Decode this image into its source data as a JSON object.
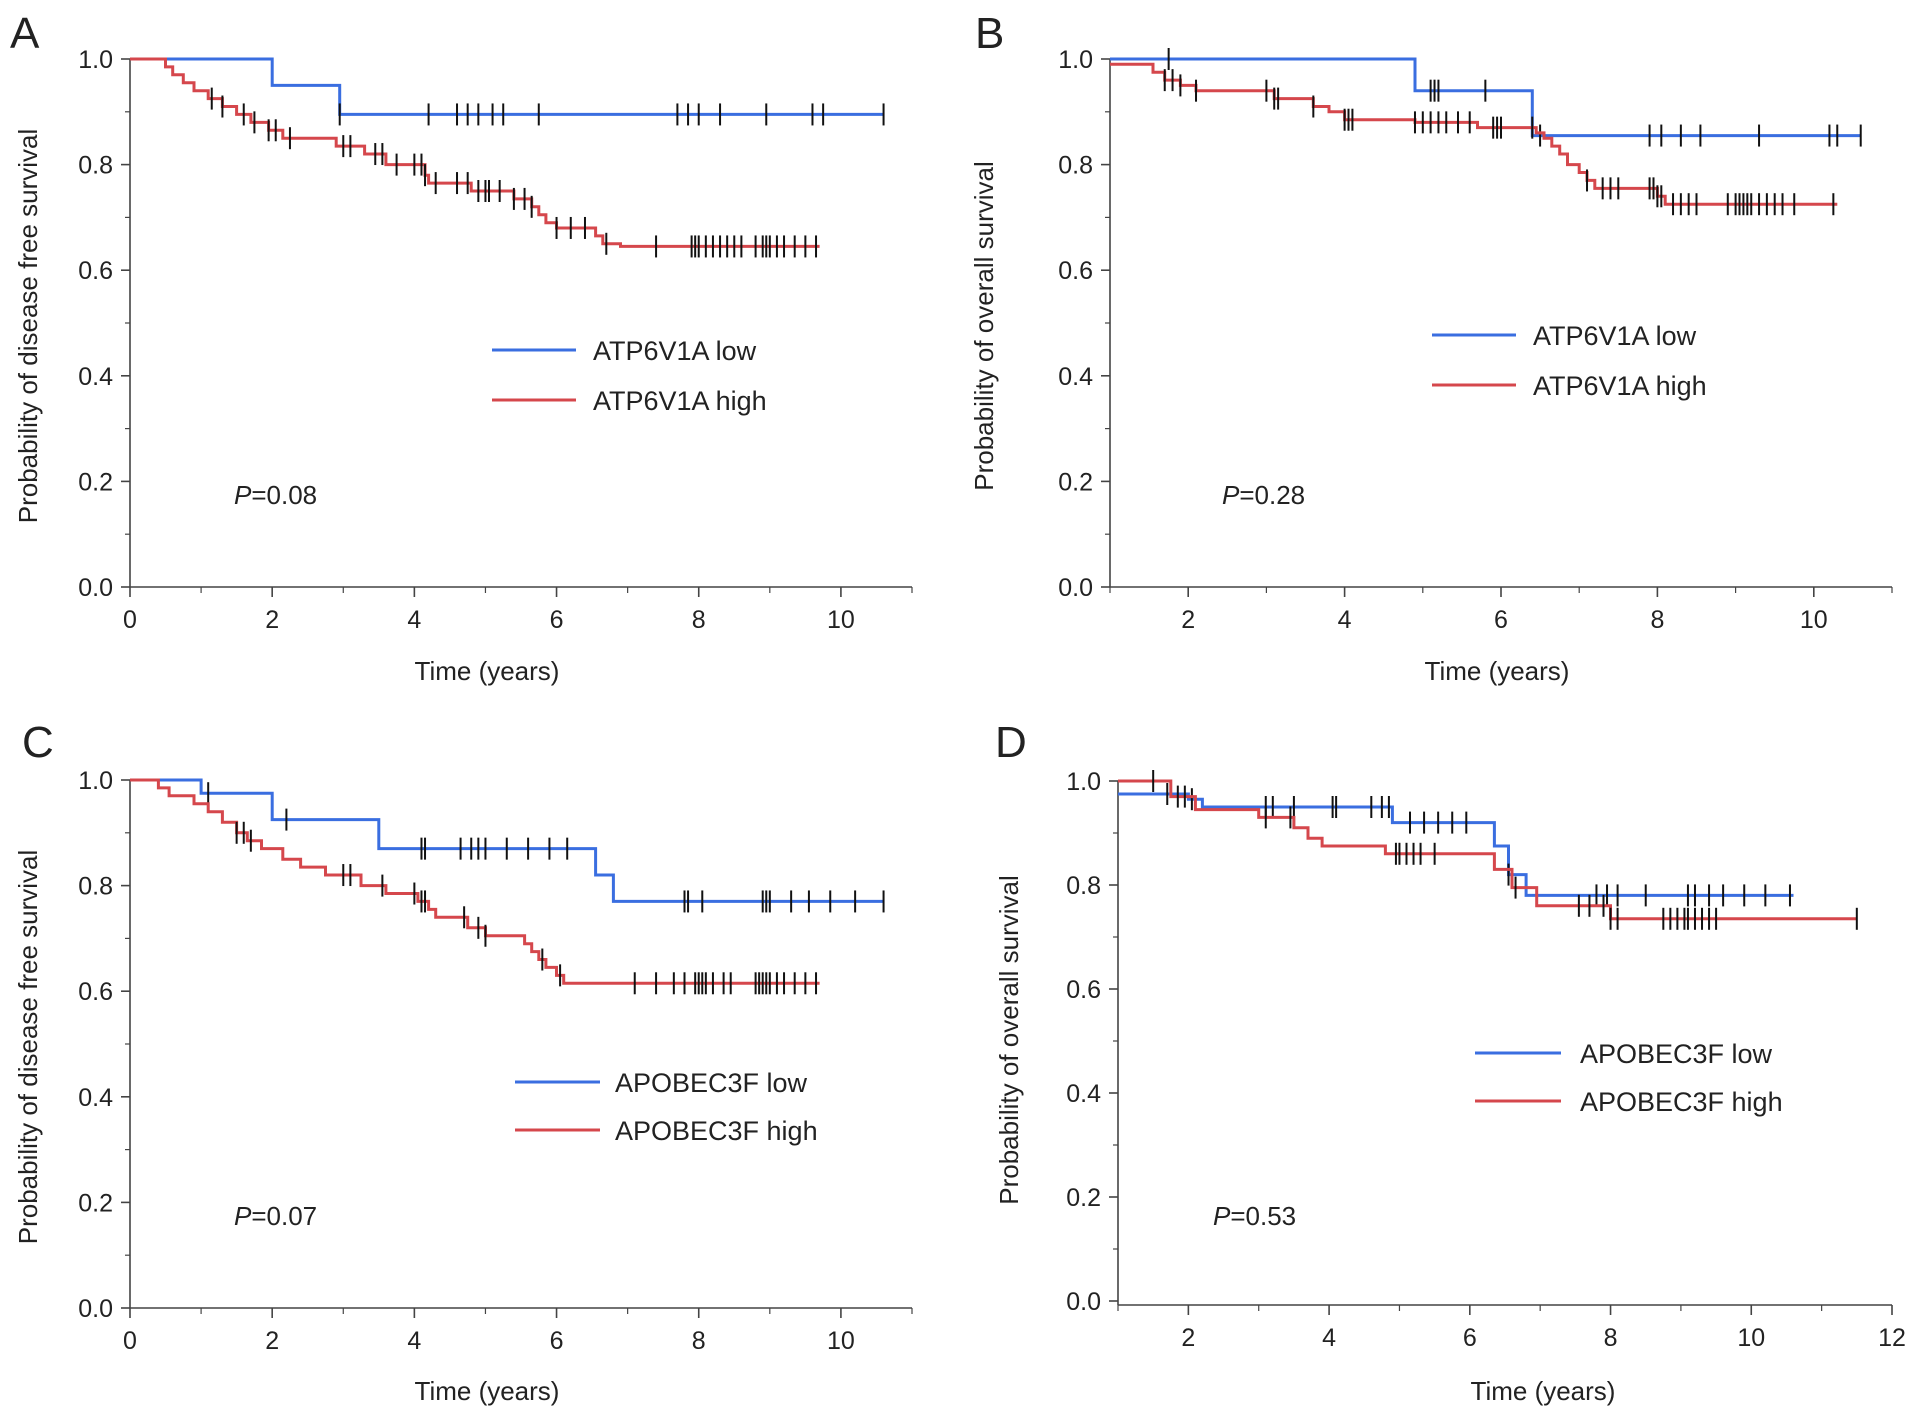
{
  "figure": {
    "type": "kaplan-meier survival curves",
    "panels": 4
  },
  "colors": {
    "low": "#3a6ee0",
    "high": "#d5474c",
    "axis": "#444444",
    "censor": "#111111",
    "text": "#222222"
  },
  "chart_data": [
    {
      "panel": "A",
      "type": "line",
      "subtype": "kaplan-meier",
      "xlabel": "Time (years)",
      "ylabel": "Probability of disease free survival",
      "xlim": [
        0,
        11
      ],
      "ylim": [
        0,
        1
      ],
      "xticks": [
        0,
        2,
        4,
        6,
        8,
        10
      ],
      "xtick_labels": [
        "0",
        "2",
        "4",
        "6",
        "8",
        "10"
      ],
      "yticks": [
        0,
        0.2,
        0.4,
        0.6,
        0.8,
        1.0
      ],
      "ytick_labels": [
        "0.0",
        "0.2",
        "0.4",
        "0.6",
        "0.8",
        "1.0"
      ],
      "p_prefix": "P",
      "p_suffix": "=0.08",
      "series": [
        {
          "name": "ATP6V1A low",
          "color": "#3a6ee0",
          "end_x": 10.6,
          "steps": [
            [
              0,
              1.0
            ],
            [
              2.0,
              0.95
            ],
            [
              2.95,
              0.895
            ]
          ],
          "censor": [
            2.95,
            4.2,
            4.6,
            4.75,
            4.9,
            5.1,
            5.25,
            5.75,
            7.7,
            7.85,
            8.0,
            8.3,
            8.95,
            9.6,
            9.75,
            10.6
          ]
        },
        {
          "name": "ATP6V1A high",
          "color": "#d5474c",
          "end_x": 9.7,
          "steps": [
            [
              0,
              1.0
            ],
            [
              0.5,
              0.985
            ],
            [
              0.6,
              0.97
            ],
            [
              0.75,
              0.955
            ],
            [
              0.9,
              0.94
            ],
            [
              1.1,
              0.925
            ],
            [
              1.3,
              0.91
            ],
            [
              1.5,
              0.895
            ],
            [
              1.7,
              0.88
            ],
            [
              1.95,
              0.865
            ],
            [
              2.15,
              0.85
            ],
            [
              2.9,
              0.835
            ],
            [
              3.3,
              0.82
            ],
            [
              3.6,
              0.8
            ],
            [
              4.15,
              0.78
            ],
            [
              4.2,
              0.765
            ],
            [
              4.8,
              0.75
            ],
            [
              5.4,
              0.735
            ],
            [
              5.65,
              0.72
            ],
            [
              5.75,
              0.705
            ],
            [
              5.85,
              0.69
            ],
            [
              6.0,
              0.68
            ],
            [
              6.3,
              0.68
            ],
            [
              6.55,
              0.665
            ],
            [
              6.65,
              0.65
            ],
            [
              6.9,
              0.645
            ]
          ],
          "censor": [
            1.15,
            1.3,
            1.6,
            1.75,
            1.95,
            2.05,
            2.25,
            3.0,
            3.1,
            3.45,
            3.55,
            3.75,
            4.0,
            4.1,
            4.15,
            4.3,
            4.6,
            4.75,
            4.9,
            5.0,
            5.05,
            5.2,
            5.4,
            5.55,
            5.65,
            6.0,
            6.2,
            6.4,
            6.7,
            7.4,
            7.9,
            7.95,
            8.0,
            8.1,
            8.2,
            8.3,
            8.4,
            8.5,
            8.6,
            8.8,
            8.9,
            8.95,
            9.0,
            9.1,
            9.2,
            9.35,
            9.5,
            9.65
          ]
        }
      ]
    },
    {
      "panel": "B",
      "type": "line",
      "subtype": "kaplan-meier",
      "xlabel": "Time (years)",
      "ylabel": "Probability of overall survival",
      "xlim": [
        1,
        11
      ],
      "ylim": [
        0,
        1
      ],
      "xticks": [
        2,
        4,
        6,
        8,
        10
      ],
      "xtick_labels": [
        "2",
        "4",
        "6",
        "8",
        "10"
      ],
      "yticks": [
        0,
        0.2,
        0.4,
        0.6,
        0.8,
        1.0
      ],
      "ytick_labels": [
        "0.0",
        "0.2",
        "0.4",
        "0.6",
        "0.8",
        "1.0"
      ],
      "p_prefix": "P",
      "p_suffix": "=0.28",
      "series": [
        {
          "name": "ATP6V1A low",
          "color": "#3a6ee0",
          "end_x": 10.6,
          "steps": [
            [
              1,
              1.0
            ],
            [
              4.9,
              0.94
            ],
            [
              6.4,
              0.855
            ]
          ],
          "censor": [
            1.75,
            5.1,
            5.15,
            5.2,
            5.8,
            6.5,
            7.9,
            8.05,
            8.3,
            8.55,
            9.3,
            10.2,
            10.3,
            10.6
          ]
        },
        {
          "name": "ATP6V1A high",
          "color": "#d5474c",
          "end_x": 10.3,
          "steps": [
            [
              1,
              0.99
            ],
            [
              1.55,
              0.975
            ],
            [
              1.7,
              0.96
            ],
            [
              1.9,
              0.95
            ],
            [
              2.1,
              0.94
            ],
            [
              3.1,
              0.925
            ],
            [
              3.6,
              0.91
            ],
            [
              3.8,
              0.9
            ],
            [
              4.0,
              0.885
            ],
            [
              4.9,
              0.88
            ],
            [
              5.7,
              0.87
            ],
            [
              6.45,
              0.86
            ],
            [
              6.55,
              0.85
            ],
            [
              6.65,
              0.835
            ],
            [
              6.75,
              0.82
            ],
            [
              6.85,
              0.8
            ],
            [
              7.0,
              0.785
            ],
            [
              7.1,
              0.77
            ],
            [
              7.2,
              0.755
            ],
            [
              8.0,
              0.74
            ],
            [
              8.1,
              0.725
            ]
          ],
          "censor": [
            1.7,
            1.8,
            1.9,
            2.1,
            3.0,
            3.1,
            3.15,
            3.6,
            4.0,
            4.05,
            4.1,
            4.9,
            5.0,
            5.1,
            5.2,
            5.3,
            5.45,
            5.6,
            5.9,
            5.95,
            6.0,
            6.4,
            7.1,
            7.3,
            7.4,
            7.5,
            7.9,
            7.95,
            8.0,
            8.05,
            8.2,
            8.3,
            8.4,
            8.5,
            8.9,
            9.0,
            9.05,
            9.1,
            9.15,
            9.2,
            9.3,
            9.4,
            9.5,
            9.6,
            9.75,
            10.25
          ]
        }
      ]
    },
    {
      "panel": "C",
      "type": "line",
      "subtype": "kaplan-meier",
      "xlabel": "Time (years)",
      "ylabel": "Probability of disease free survival",
      "xlim": [
        0,
        11
      ],
      "ylim": [
        0,
        1
      ],
      "xticks": [
        0,
        2,
        4,
        6,
        8,
        10
      ],
      "xtick_labels": [
        "0",
        "2",
        "4",
        "6",
        "8",
        "10"
      ],
      "yticks": [
        0,
        0.2,
        0.4,
        0.6,
        0.8,
        1.0
      ],
      "ytick_labels": [
        "0.0",
        "0.2",
        "0.4",
        "0.6",
        "0.8",
        "1.0"
      ],
      "p_prefix": "P",
      "p_suffix": "=0.07",
      "series": [
        {
          "name": "APOBEC3F low",
          "color": "#3a6ee0",
          "end_x": 10.6,
          "steps": [
            [
              0,
              1.0
            ],
            [
              1.0,
              0.975
            ],
            [
              2.0,
              0.925
            ],
            [
              3.5,
              0.87
            ],
            [
              6.55,
              0.82
            ],
            [
              6.8,
              0.77
            ]
          ],
          "censor": [
            1.1,
            2.2,
            4.1,
            4.15,
            4.65,
            4.8,
            4.9,
            5.0,
            5.3,
            5.6,
            5.9,
            6.15,
            7.8,
            7.85,
            8.05,
            8.9,
            8.95,
            9.0,
            9.3,
            9.55,
            9.85,
            10.2,
            10.6
          ]
        },
        {
          "name": "APOBEC3F high",
          "color": "#d5474c",
          "end_x": 9.7,
          "steps": [
            [
              0,
              1.0
            ],
            [
              0.4,
              0.985
            ],
            [
              0.55,
              0.97
            ],
            [
              0.9,
              0.955
            ],
            [
              1.1,
              0.94
            ],
            [
              1.3,
              0.92
            ],
            [
              1.5,
              0.9
            ],
            [
              1.65,
              0.885
            ],
            [
              1.85,
              0.87
            ],
            [
              2.15,
              0.85
            ],
            [
              2.4,
              0.835
            ],
            [
              2.75,
              0.82
            ],
            [
              3.25,
              0.8
            ],
            [
              3.6,
              0.785
            ],
            [
              4.05,
              0.77
            ],
            [
              4.2,
              0.755
            ],
            [
              4.3,
              0.74
            ],
            [
              4.75,
              0.72
            ],
            [
              5.0,
              0.705
            ],
            [
              5.55,
              0.69
            ],
            [
              5.65,
              0.675
            ],
            [
              5.75,
              0.66
            ],
            [
              5.85,
              0.645
            ],
            [
              6.0,
              0.63
            ],
            [
              6.1,
              0.615
            ]
          ],
          "censor": [
            1.5,
            1.6,
            1.7,
            3.0,
            3.1,
            3.55,
            4.0,
            4.1,
            4.15,
            4.7,
            4.9,
            5.0,
            5.8,
            6.05,
            7.1,
            7.4,
            7.65,
            7.8,
            7.95,
            8.0,
            8.05,
            8.1,
            8.2,
            8.35,
            8.45,
            8.8,
            8.85,
            8.9,
            8.95,
            9.0,
            9.1,
            9.2,
            9.35,
            9.5,
            9.65
          ]
        }
      ]
    },
    {
      "panel": "D",
      "type": "line",
      "subtype": "kaplan-meier",
      "xlabel": "Time (years)",
      "ylabel": "Probability of overall survival",
      "xlim": [
        1,
        12
      ],
      "ylim": [
        0,
        1
      ],
      "xticks": [
        2,
        4,
        6,
        8,
        10,
        12
      ],
      "xtick_labels": [
        "2",
        "4",
        "6",
        "8",
        "10",
        "12"
      ],
      "yticks": [
        0,
        0.2,
        0.4,
        0.6,
        0.8,
        1.0
      ],
      "ytick_labels": [
        "0.0",
        "0.2",
        "0.4",
        "0.6",
        "0.8",
        "1.0"
      ],
      "p_prefix": "P",
      "p_suffix": "=0.53",
      "series": [
        {
          "name": "APOBEC3F low",
          "color": "#3a6ee0",
          "end_x": 10.6,
          "steps": [
            [
              1,
              0.975
            ],
            [
              2.0,
              0.965
            ],
            [
              2.2,
              0.95
            ],
            [
              4.9,
              0.92
            ],
            [
              6.35,
              0.875
            ],
            [
              6.55,
              0.82
            ],
            [
              6.8,
              0.78
            ]
          ],
          "censor": [
            1.7,
            2.05,
            3.1,
            3.2,
            3.5,
            4.05,
            4.1,
            4.6,
            4.75,
            4.85,
            5.15,
            5.35,
            5.55,
            5.75,
            5.95,
            6.55,
            7.8,
            7.95,
            8.1,
            8.5,
            9.1,
            9.2,
            9.4,
            9.6,
            9.9,
            10.2,
            10.55
          ]
        },
        {
          "name": "APOBEC3F high",
          "color": "#d5474c",
          "end_x": 11.5,
          "steps": [
            [
              1,
              1.0
            ],
            [
              1.75,
              0.97
            ],
            [
              2.1,
              0.945
            ],
            [
              3.0,
              0.93
            ],
            [
              3.5,
              0.91
            ],
            [
              3.7,
              0.89
            ],
            [
              3.9,
              0.875
            ],
            [
              4.8,
              0.86
            ],
            [
              6.35,
              0.83
            ],
            [
              6.6,
              0.795
            ],
            [
              6.95,
              0.76
            ],
            [
              8.0,
              0.735
            ]
          ],
          "censor": [
            1.5,
            1.85,
            1.95,
            3.1,
            3.45,
            4.95,
            5.0,
            5.1,
            5.2,
            5.3,
            5.5,
            6.65,
            7.55,
            7.7,
            7.9,
            8.0,
            8.1,
            8.75,
            8.85,
            8.95,
            9.05,
            9.1,
            9.2,
            9.3,
            9.4,
            9.5,
            11.5
          ]
        }
      ]
    }
  ],
  "panels": [
    {
      "letter": "A",
      "xlabel": "Time (years)",
      "ylabel": "Probability of disease free survival",
      "legend": [
        "ATP6V1A low",
        "ATP6V1A high"
      ],
      "p_prefix": "P",
      "p_suffix": "=0.08"
    },
    {
      "letter": "B",
      "xlabel": "Time (years)",
      "ylabel": "Probability of overall survival",
      "legend": [
        "ATP6V1A low",
        "ATP6V1A high"
      ],
      "p_prefix": "P",
      "p_suffix": "=0.28"
    },
    {
      "letter": "C",
      "xlabel": "Time (years)",
      "ylabel": "Probability of disease free survival",
      "legend": [
        "APOBEC3F low",
        "APOBEC3F high"
      ],
      "p_prefix": "P",
      "p_suffix": "=0.07"
    },
    {
      "letter": "D",
      "xlabel": "Time (years)",
      "ylabel": "Probability of overall survival",
      "legend": [
        "APOBEC3F low",
        "APOBEC3F high"
      ],
      "p_prefix": "P",
      "p_suffix": "=0.53"
    }
  ]
}
